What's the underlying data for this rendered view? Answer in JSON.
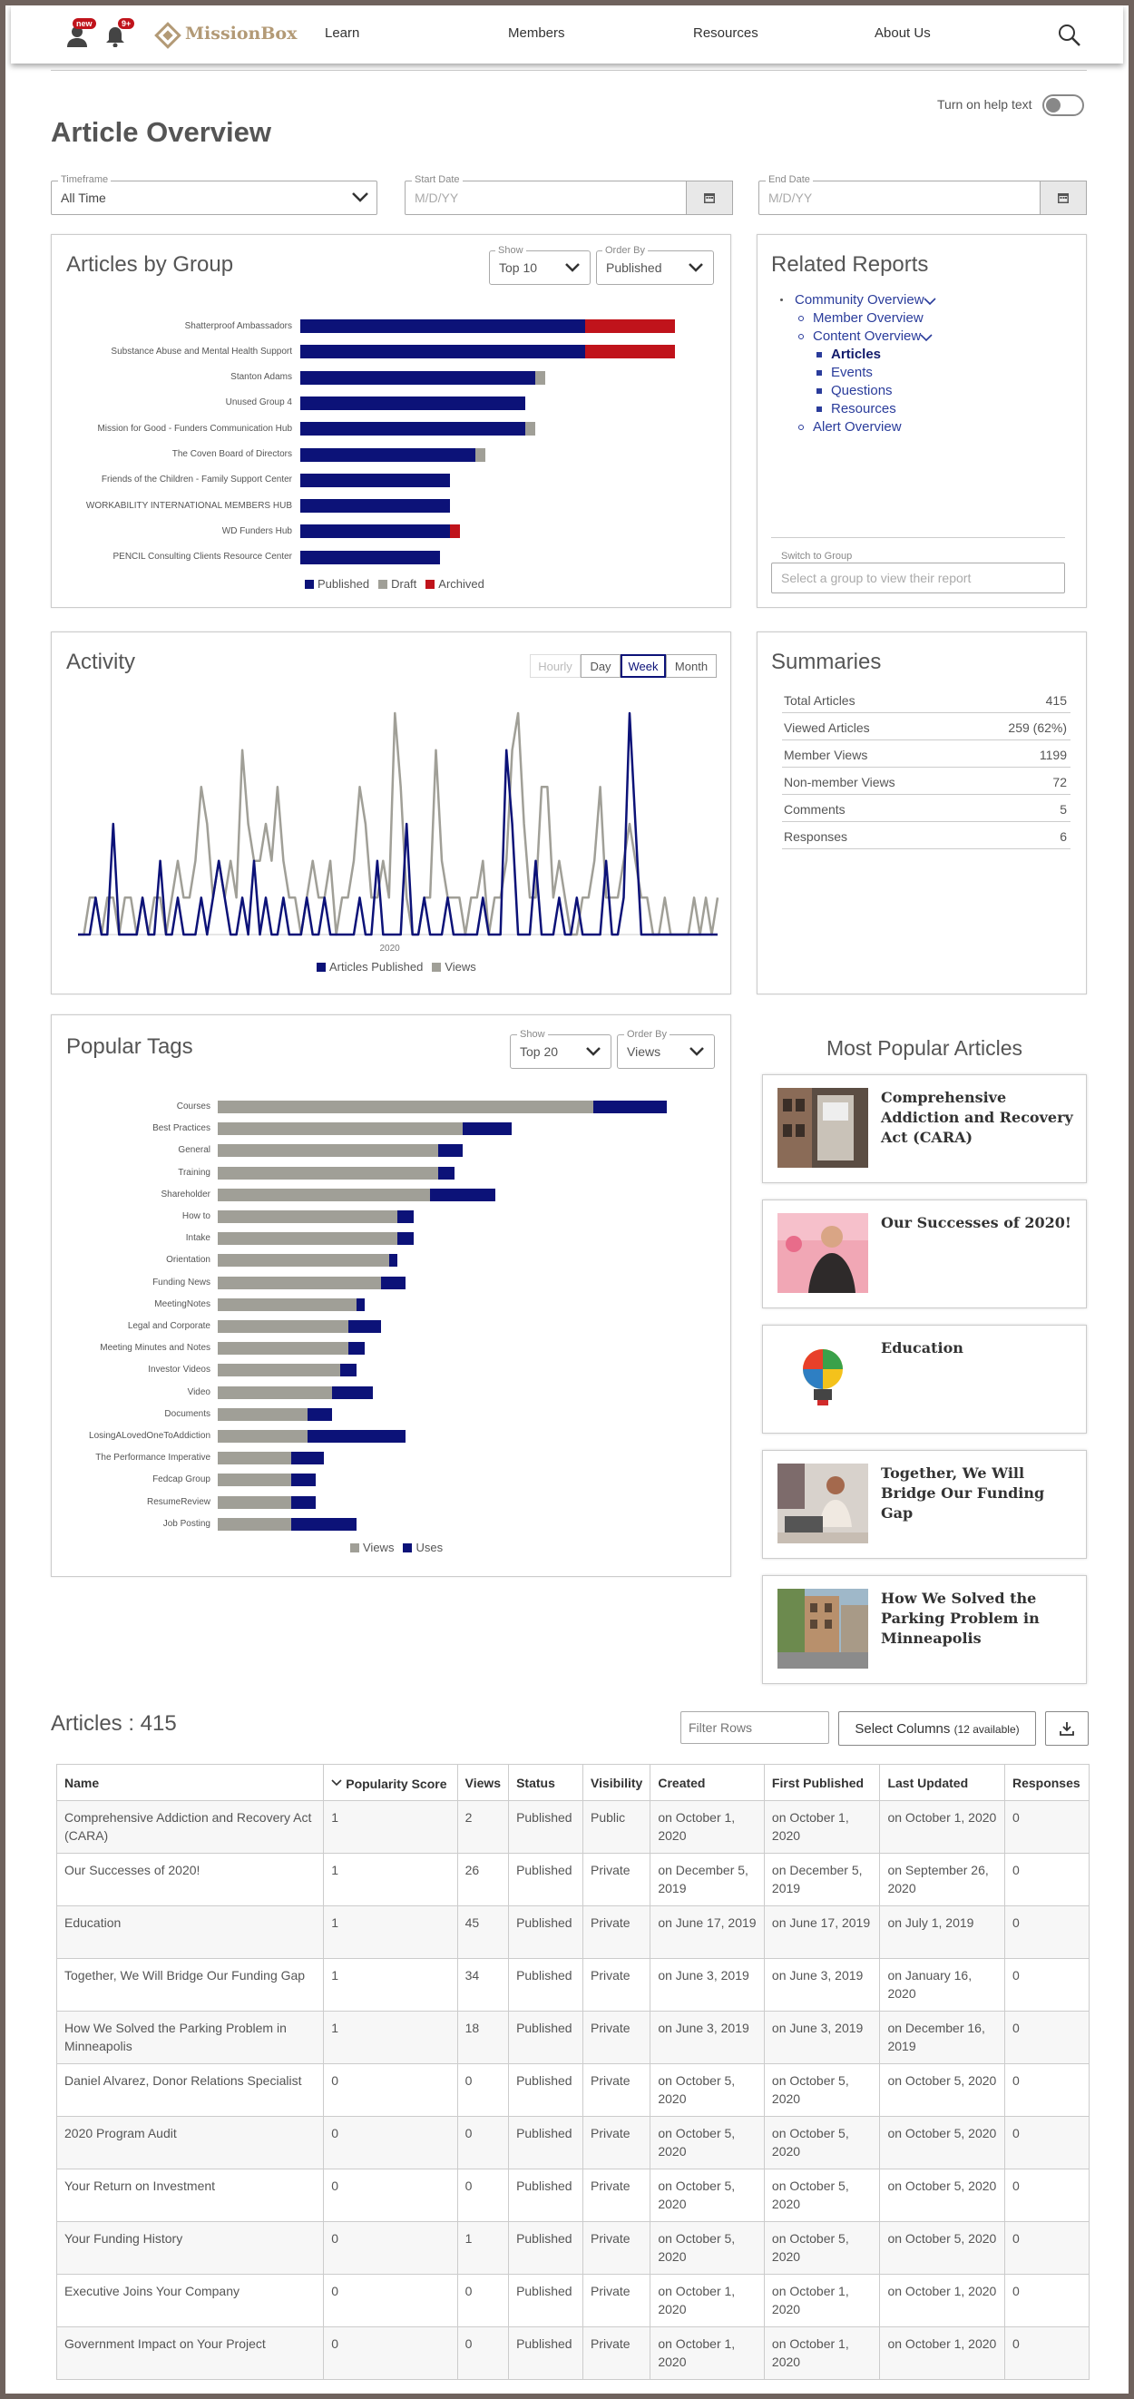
{
  "nav": {
    "brand": "MissionBox",
    "badge_new": "new",
    "badge_count": "9+",
    "items": [
      "Learn",
      "Members",
      "Resources",
      "About Us"
    ]
  },
  "page": {
    "title": "Article Overview",
    "help_toggle_label": "Turn on help text"
  },
  "filters": {
    "timeframe_label": "Timeframe",
    "timeframe_value": "All Time",
    "start_label": "Start Date",
    "start_placeholder": "M/D/YY",
    "end_label": "End Date",
    "end_placeholder": "M/D/YY"
  },
  "articles_by_group": {
    "title": "Articles by Group",
    "show_label": "Show",
    "show_value": "Top 10",
    "order_label": "Order By",
    "order_value": "Published",
    "chart_data": {
      "type": "bar",
      "orientation": "horizontal",
      "stacked": true,
      "categories": [
        "Shatterproof Ambassadors",
        "Substance Abuse and Mental Health Support",
        "Stanton Adams",
        "Unused Group 4",
        "Mission for Good - Funders Communication Hub",
        "The Coven Board of Directors",
        "Friends of the Children - Family Support Center",
        "WORKABILITY INTERNATIONAL MEMBERS HUB",
        "WD Funders Hub",
        "PENCIL Consulting Clients Resource Center"
      ],
      "series": [
        {
          "name": "Published",
          "color": "#0c1278",
          "values": [
            57,
            57,
            47,
            45,
            45,
            35,
            30,
            30,
            30,
            28
          ]
        },
        {
          "name": "Draft",
          "color": "#a09f97",
          "values": [
            0,
            0,
            2,
            0,
            2,
            2,
            0,
            0,
            0,
            0
          ]
        },
        {
          "name": "Archived",
          "color": "#c0131b",
          "values": [
            18,
            18,
            0,
            0,
            0,
            0,
            0,
            0,
            2,
            0
          ]
        }
      ],
      "legend_position": "bottom"
    }
  },
  "related_reports": {
    "title": "Related Reports",
    "items": [
      {
        "label": "Community Overview",
        "level": 0
      },
      {
        "label": "Member Overview",
        "level": 1
      },
      {
        "label": "Content Overview",
        "level": 1
      },
      {
        "label": "Articles",
        "level": 2,
        "active": true
      },
      {
        "label": "Events",
        "level": 2
      },
      {
        "label": "Questions",
        "level": 2
      },
      {
        "label": "Resources",
        "level": 2
      },
      {
        "label": "Alert Overview",
        "level": 1
      }
    ],
    "switch_label": "Switch to Group",
    "switch_placeholder": "Select a group to view their report"
  },
  "activity": {
    "title": "Activity",
    "buttons": [
      "Hourly",
      "Day",
      "Week",
      "Month"
    ],
    "active_button": "Week",
    "chart_data": {
      "type": "line",
      "x_tick_labels": [
        "2020"
      ],
      "series": [
        {
          "name": "Articles Published",
          "color": "#0c1278",
          "values": [
            0,
            0,
            0,
            1,
            0,
            0,
            3,
            0,
            0,
            0,
            0,
            1,
            0,
            0,
            2,
            0,
            0,
            1,
            0,
            0,
            0,
            1,
            0,
            1,
            2,
            1,
            0,
            0,
            1,
            0,
            2,
            0,
            1,
            0,
            0,
            1,
            0,
            0,
            0,
            1,
            0,
            0,
            1,
            0,
            0,
            0,
            0,
            0,
            1,
            0,
            0,
            2,
            0,
            0,
            0,
            0,
            3,
            0,
            0,
            1,
            0,
            0,
            0,
            1,
            0,
            0,
            0,
            0,
            0,
            1,
            0,
            0,
            0,
            5,
            3,
            0,
            0,
            0,
            2,
            0,
            0,
            0,
            1,
            0,
            0,
            1,
            0,
            0,
            0,
            0,
            2,
            0,
            0,
            1,
            6,
            3,
            0,
            0,
            0,
            0,
            0,
            0,
            0,
            0,
            0,
            0,
            0,
            0,
            0,
            0
          ]
        },
        {
          "name": "Views",
          "color": "#a09f97",
          "values": [
            0,
            0,
            1,
            1,
            0,
            1,
            1,
            0,
            1,
            1,
            0,
            1,
            0,
            1,
            1,
            0,
            1,
            2,
            1,
            1,
            2,
            4,
            3,
            1,
            2,
            1,
            2,
            1,
            5,
            3,
            2,
            2,
            3,
            2,
            4,
            2,
            1,
            1,
            0,
            1,
            2,
            1,
            1,
            2,
            0,
            1,
            1,
            2,
            4,
            3,
            1,
            1,
            2,
            1,
            6,
            4,
            1,
            0,
            0,
            1,
            1,
            5,
            2,
            1,
            1,
            1,
            0,
            1,
            1,
            2,
            0,
            1,
            1,
            2,
            5,
            6,
            3,
            1,
            1,
            4,
            4,
            1,
            2,
            1,
            0,
            0,
            1,
            1,
            2,
            4,
            1,
            1,
            1,
            2,
            3,
            2,
            1,
            1,
            0,
            0,
            1,
            0,
            0,
            0,
            0,
            1,
            0,
            1,
            0,
            1
          ]
        }
      ],
      "legend_position": "bottom"
    }
  },
  "summaries": {
    "title": "Summaries",
    "rows": [
      {
        "label": "Total Articles",
        "value": "415"
      },
      {
        "label": "Viewed Articles",
        "value": "259 (62%)"
      },
      {
        "label": "Member Views",
        "value": "1199"
      },
      {
        "label": "Non-member Views",
        "value": "72"
      },
      {
        "label": "Comments",
        "value": "5"
      },
      {
        "label": "Responses",
        "value": "6"
      }
    ]
  },
  "popular_tags": {
    "title": "Popular Tags",
    "show_label": "Show",
    "show_value": "Top 20",
    "order_label": "Order By",
    "order_value": "Views",
    "chart_data": {
      "type": "bar",
      "orientation": "horizontal",
      "stacked": true,
      "categories": [
        "Courses",
        "Best Practices",
        "General",
        "Training",
        "Shareholder",
        "How to",
        "Intake",
        "Orientation",
        "Funding News",
        "MeetingNotes",
        "Legal and Corporate",
        "Meeting Minutes and Notes",
        "Investor Videos",
        "Video",
        "Documents",
        "LosingALovedOneToAddiction",
        "The Performance Imperative",
        "Fedcap Group",
        "ResumeReview",
        "Job Posting"
      ],
      "series": [
        {
          "name": "Views",
          "color": "#a09f97",
          "values": [
            92,
            60,
            54,
            54,
            52,
            44,
            44,
            42,
            40,
            34,
            32,
            32,
            30,
            28,
            22,
            22,
            18,
            18,
            18,
            18
          ]
        },
        {
          "name": "Uses",
          "color": "#0c1278",
          "values": [
            18,
            12,
            6,
            4,
            16,
            4,
            4,
            2,
            6,
            2,
            8,
            4,
            4,
            10,
            6,
            24,
            8,
            6,
            6,
            16
          ]
        }
      ],
      "legend_position": "bottom"
    }
  },
  "most_popular": {
    "title": "Most Popular Articles",
    "items": [
      {
        "title": "Comprehensive Addiction and Recovery Act (CARA)",
        "thumb": "building"
      },
      {
        "title": "Our Successes of 2020!",
        "thumb": "person-pink"
      },
      {
        "title": "Education",
        "thumb": "lightbulb"
      },
      {
        "title": "Together, We Will Bridge Our Funding Gap",
        "thumb": "laptop"
      },
      {
        "title": "How We Solved the Parking Problem in Minneapolis",
        "thumb": "street"
      }
    ]
  },
  "articles_table": {
    "title": "Articles : 415",
    "filter_placeholder": "Filter Rows",
    "select_columns": "Select Columns",
    "select_columns_note": "(12 available)",
    "columns": [
      "Name",
      "Popularity Score",
      "Views",
      "Status",
      "Visibility",
      "Created",
      "First Published",
      "Last Updated",
      "Responses"
    ],
    "rows": [
      [
        "Comprehensive Addiction and Recovery Act (CARA)",
        "1",
        "2",
        "Published",
        "Public",
        "on October 1, 2020",
        "on October 1, 2020",
        "on October 1, 2020",
        "0"
      ],
      [
        "Our Successes of 2020!",
        "1",
        "26",
        "Published",
        "Private",
        "on December 5, 2019",
        "on December 5, 2019",
        "on September 26, 2020",
        "0"
      ],
      [
        "Education",
        "1",
        "45",
        "Published",
        "Private",
        "on June 17, 2019",
        "on June 17, 2019",
        "on July 1, 2019",
        "0"
      ],
      [
        "Together, We Will Bridge Our Funding Gap",
        "1",
        "34",
        "Published",
        "Private",
        "on June 3, 2019",
        "on June 3, 2019",
        "on January 16, 2020",
        "0"
      ],
      [
        "How We Solved the Parking Problem in Minneapolis",
        "1",
        "18",
        "Published",
        "Private",
        "on June 3, 2019",
        "on June 3, 2019",
        "on December 16, 2019",
        "0"
      ],
      [
        "Daniel Alvarez, Donor Relations Specialist",
        "0",
        "0",
        "Published",
        "Private",
        "on October 5, 2020",
        "on October 5, 2020",
        "on October 5, 2020",
        "0"
      ],
      [
        "2020 Program Audit",
        "0",
        "0",
        "Published",
        "Private",
        "on October 5, 2020",
        "on October 5, 2020",
        "on October 5, 2020",
        "0"
      ],
      [
        "Your Return on Investment",
        "0",
        "0",
        "Published",
        "Private",
        "on October 5, 2020",
        "on October 5, 2020",
        "on October 5, 2020",
        "0"
      ],
      [
        "Your Funding History",
        "0",
        "1",
        "Published",
        "Private",
        "on October 5, 2020",
        "on October 5, 2020",
        "on October 5, 2020",
        "0"
      ],
      [
        "Executive Joins Your Company",
        "0",
        "0",
        "Published",
        "Private",
        "on October 1, 2020",
        "on October 1, 2020",
        "on October 1, 2020",
        "0"
      ],
      [
        "Government Impact on Your Project",
        "0",
        "0",
        "Published",
        "Private",
        "on October 1, 2020",
        "on October 1, 2020",
        "on October 1, 2020",
        "0"
      ]
    ]
  }
}
